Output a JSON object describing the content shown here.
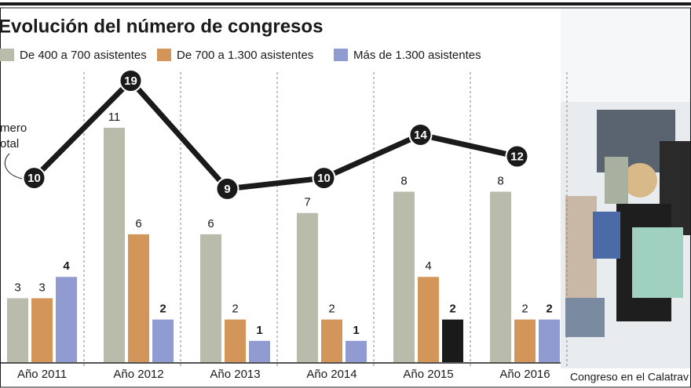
{
  "chart_data": {
    "type": "bar-line",
    "title": "Evolución del número de congresos",
    "annotation": [
      "mero",
      "otal"
    ],
    "caption": "Congreso en el Calatrav",
    "categories": [
      "Año 2011",
      "Año 2012",
      "Año 2013",
      "Año 2014",
      "Año 2015",
      "Año 2016"
    ],
    "series": [
      {
        "name": "De 400 a 700 asistentes",
        "color": "#b9bcaa",
        "values": [
          3,
          11,
          6,
          7,
          8,
          8
        ]
      },
      {
        "name": "De 700 a 1.300 asistentes",
        "color": "#d4955a",
        "values": [
          3,
          6,
          2,
          2,
          4,
          2
        ]
      },
      {
        "name": "Más de 1.300 asistentes",
        "color": "#8f9bd1",
        "colors": [
          "#8f9bd1",
          "#8f9bd1",
          "#8f9bd1",
          "#8f9bd1",
          "#1a1a1a",
          "#8f9bd1"
        ],
        "values": [
          4,
          2,
          1,
          1,
          2,
          2
        ]
      },
      {
        "type": "line",
        "axis": "y2",
        "color": "#1a1a1a",
        "values": [
          10,
          19,
          9,
          10,
          14,
          12
        ]
      }
    ],
    "ylim": [
      0,
      11
    ],
    "y2lim": [
      0,
      19
    ]
  }
}
